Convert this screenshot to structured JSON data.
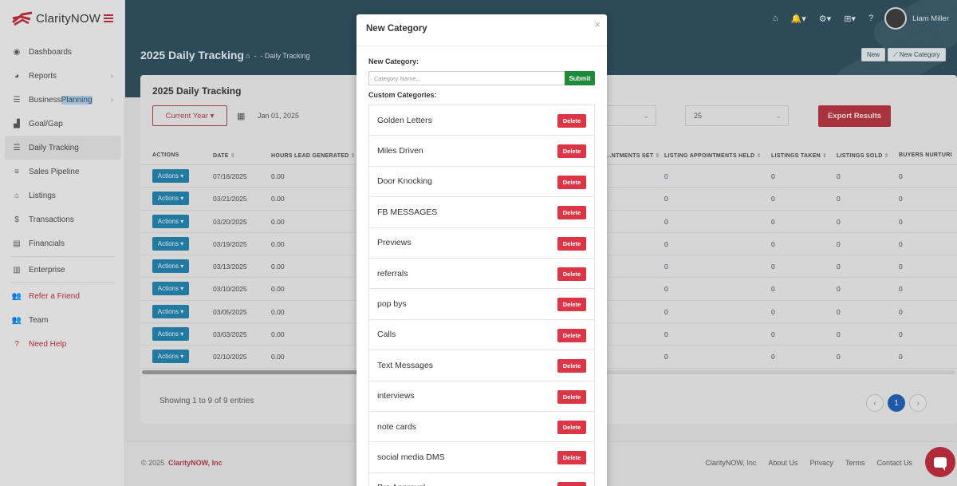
{
  "app": {
    "name": "ClarityNOW"
  },
  "sidebar": {
    "items": [
      {
        "label": "Dashboards",
        "icon": "dashboard-icon",
        "glyph": "◉"
      },
      {
        "label": "Reports",
        "icon": "pie-chart-icon",
        "glyph": "◕"
      },
      {
        "label_pre": "Business ",
        "label_hl": "Planning",
        "icon": "list-icon",
        "glyph": "☰"
      },
      {
        "label": "Goal/Gap",
        "icon": "bar-chart-icon",
        "glyph": "▟"
      },
      {
        "label": "Daily Tracking",
        "icon": "list-icon",
        "glyph": "☰"
      },
      {
        "label": "Sales Pipeline",
        "icon": "pipeline-icon",
        "glyph": "≡"
      },
      {
        "label": "Listings",
        "icon": "home-icon",
        "glyph": "⌂"
      },
      {
        "label": "Transactions",
        "icon": "dollar-icon",
        "glyph": "$"
      },
      {
        "label": "Financials",
        "icon": "coins-icon",
        "glyph": "▤"
      },
      {
        "label": "Enterprise",
        "icon": "building-icon",
        "glyph": "▥"
      },
      {
        "label": "Refer a Friend",
        "icon": "users-icon",
        "glyph": "👥"
      },
      {
        "label": "Team",
        "icon": "team-icon",
        "glyph": "👥"
      },
      {
        "label": "Need Help",
        "icon": "help-icon",
        "glyph": "?"
      }
    ]
  },
  "header": {
    "title": "2025 Daily Tracking",
    "breadcrumb": [
      "-",
      "- Daily Tracking"
    ],
    "username": "Liam Miller",
    "btn_new": "New",
    "btn_new_category": "New Category"
  },
  "card": {
    "title": "2025 Daily Tracking",
    "year_btn": "Current Year",
    "start_date": "Jan 01, 2025",
    "page_size": "25",
    "export_btn": "Export Results"
  },
  "table": {
    "columns": [
      "ACTIONS",
      "DATE",
      "HOURS LEAD GENERATED",
      "...NTMENTS SET",
      "LISTING APPOINTMENTS HELD",
      "LISTINGS TAKEN",
      "LISTINGS SOLD",
      "BUYERS NURTURI"
    ],
    "actions_label": "Actions",
    "rows": [
      {
        "date": "07/16/2025",
        "hours": "0.00",
        "held": "0",
        "taken": "0",
        "sold": "0",
        "buyers": "0"
      },
      {
        "date": "03/21/2025",
        "hours": "0.00",
        "held": "0",
        "taken": "0",
        "sold": "0",
        "buyers": "0"
      },
      {
        "date": "03/20/2025",
        "hours": "0.00",
        "held": "0",
        "taken": "0",
        "sold": "0",
        "buyers": "0"
      },
      {
        "date": "03/19/2025",
        "hours": "0.00",
        "held": "0",
        "taken": "0",
        "sold": "0",
        "buyers": "0"
      },
      {
        "date": "03/13/2025",
        "hours": "0.00",
        "held": "0",
        "taken": "0",
        "sold": "0",
        "buyers": "0"
      },
      {
        "date": "03/10/2025",
        "hours": "0.00",
        "held": "0",
        "taken": "0",
        "sold": "0",
        "buyers": "0"
      },
      {
        "date": "03/05/2025",
        "hours": "0.00",
        "held": "0",
        "taken": "0",
        "sold": "0",
        "buyers": "0"
      },
      {
        "date": "03/03/2025",
        "hours": "0.00",
        "held": "0",
        "taken": "0",
        "sold": "0",
        "buyers": "0"
      },
      {
        "date": "02/10/2025",
        "hours": "0.00",
        "held": "0",
        "taken": "0",
        "sold": "0",
        "buyers": "0"
      }
    ],
    "entries_text": "Showing 1 to 9 of 9 entries",
    "current_page": "1"
  },
  "footer": {
    "copyright": "© 2025",
    "brand": "ClarityNOW, Inc",
    "links": [
      "ClarityNOW, Inc",
      "About Us",
      "Privacy",
      "Terms",
      "Contact Us"
    ]
  },
  "modal": {
    "title": "New Category",
    "new_label": "New Category:",
    "placeholder": "Category Name...",
    "submit": "Submit",
    "custom_label": "Custom Categories:",
    "delete_label": "Delete",
    "categories": [
      "Golden Letters",
      "Miles Driven",
      "Door Knocking",
      "FB MESSAGES",
      "Previews",
      "referrals",
      "pop bys",
      "Calls",
      "Text Messages",
      "interviews",
      "note cards",
      "social media DMS",
      "Pre Approval"
    ]
  },
  "colors": {
    "brand_red": "#dc3545",
    "header_bg": "#2d4a58",
    "submit_green": "#1f8a3a",
    "actions_blue": "#237aa1"
  }
}
